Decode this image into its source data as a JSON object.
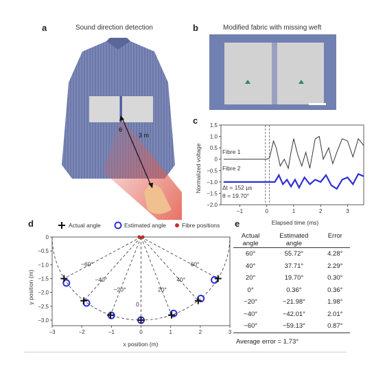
{
  "panel_a": {
    "letter": "a",
    "title": "Sound direction detection",
    "theta": "θ",
    "distance": "3 m"
  },
  "panel_b": {
    "letter": "b",
    "title": "Modified fabric with missing weft"
  },
  "panel_c": {
    "letter": "c",
    "chart_data": {
      "type": "line",
      "xlabel": "Elapsed time (ms)",
      "ylabel": "Normalized voltage",
      "xlim": [
        -1.7,
        3.6
      ],
      "ylim": [
        -2.0,
        1.5
      ],
      "xticks": [
        "−1",
        "0",
        "1",
        "2",
        "3"
      ],
      "yticks": [
        "1.5",
        "1.0",
        "0.5",
        "0",
        "−0.5",
        "−1.0",
        "−1.5",
        "−2.0"
      ],
      "series": [
        {
          "name": "Fibre 1",
          "color": "#333333",
          "x": [
            -1.6,
            -1.2,
            -0.8,
            -0.4,
            0.0,
            0.1,
            0.25,
            0.35,
            0.5,
            0.65,
            0.8,
            0.9,
            1.0,
            1.15,
            1.3,
            1.45,
            1.6,
            1.8,
            1.95,
            2.1,
            2.3,
            2.45,
            2.6,
            2.8,
            3.0,
            3.2,
            3.4,
            3.6
          ],
          "y": [
            0.0,
            0.0,
            0.0,
            0.0,
            0.0,
            0.05,
            0.8,
            0.5,
            -0.3,
            0.0,
            -0.4,
            0.3,
            0.9,
            0.2,
            -0.3,
            0.3,
            -0.4,
            0.9,
            1.0,
            0.0,
            0.5,
            -0.2,
            0.3,
            0.9,
            0.8,
            0.1,
            0.9,
            0.6
          ]
        },
        {
          "name": "Fibre 2",
          "color": "#2f2fd6",
          "x": [
            -1.6,
            -1.2,
            -0.8,
            -0.4,
            0.0,
            0.15,
            0.3,
            0.45,
            0.6,
            0.75,
            0.9,
            1.05,
            1.2,
            1.4,
            1.6,
            1.8,
            2.0,
            2.2,
            2.4,
            2.6,
            2.8,
            3.0,
            3.2,
            3.4,
            3.6
          ],
          "y": [
            -1.0,
            -1.0,
            -1.0,
            -1.0,
            -1.0,
            -1.0,
            -1.0,
            -0.7,
            -1.1,
            -0.9,
            -1.2,
            -0.9,
            -1.25,
            -0.8,
            -1.1,
            -0.9,
            -1.0,
            -0.7,
            -1.15,
            -1.3,
            -0.9,
            -0.8,
            -1.1,
            -0.65,
            -0.75
          ]
        }
      ],
      "annotations": [
        "Δt = 152 µs",
        "θ = 19.70°"
      ]
    }
  },
  "panel_d": {
    "letter": "d",
    "legend": {
      "actual": "Actual angle",
      "estimated": "Estimated angle",
      "fibre": "Fibre positions"
    },
    "chart_data": {
      "type": "scatter",
      "xlabel": "x position (m)",
      "ylabel": "y position (m)",
      "xlim": [
        -3,
        3
      ],
      "ylim": [
        -3.2,
        0
      ],
      "xticks": [
        "−3",
        "−2",
        "−1",
        "0",
        "1",
        "2",
        "3"
      ],
      "yticks": [
        "0",
        "−0.5",
        "−1.0",
        "−1.5",
        "−2.0",
        "−2.5",
        "−3.0"
      ],
      "angle_labels": [
        "−60°",
        "−40°",
        "−20°",
        "0",
        "20°",
        "40°",
        "60°"
      ],
      "actual": {
        "x": [
          -2.6,
          -1.93,
          -1.03,
          0.0,
          1.03,
          1.93,
          2.6
        ],
        "y": [
          -1.5,
          -2.3,
          -2.82,
          -3.0,
          -2.82,
          -2.3,
          -1.5
        ]
      },
      "estimated": {
        "x": [
          -2.52,
          -1.84,
          -1.0,
          0.0,
          1.1,
          2.02,
          2.48
        ],
        "y": [
          -1.66,
          -2.38,
          -2.83,
          -3.0,
          -2.76,
          -2.22,
          -1.55
        ]
      },
      "fibres": {
        "x": [
          -0.06,
          0.06
        ],
        "y": [
          0.0,
          0.0
        ]
      }
    }
  },
  "panel_e": {
    "letter": "e",
    "headers": {
      "actual": "Actual\nangle",
      "estimated": "Estimated\nangle",
      "error": "Error"
    },
    "rows": [
      {
        "actual": "60°",
        "estimated": "55.72°",
        "error": "4.28°"
      },
      {
        "actual": "40°",
        "estimated": "37.71°",
        "error": "2.29°"
      },
      {
        "actual": "20°",
        "estimated": "19.70°",
        "error": "0.30°"
      },
      {
        "actual": "0°",
        "estimated": "0.36°",
        "error": "0.36°"
      },
      {
        "actual": "−20°",
        "estimated": "−21.98°",
        "error": "1.98°"
      },
      {
        "actual": "−40°",
        "estimated": "−42.01°",
        "error": "2.01°"
      },
      {
        "actual": "−60°",
        "estimated": "−59.13°",
        "error": "0.87°"
      }
    ],
    "average": "Average error = 1.73°"
  }
}
